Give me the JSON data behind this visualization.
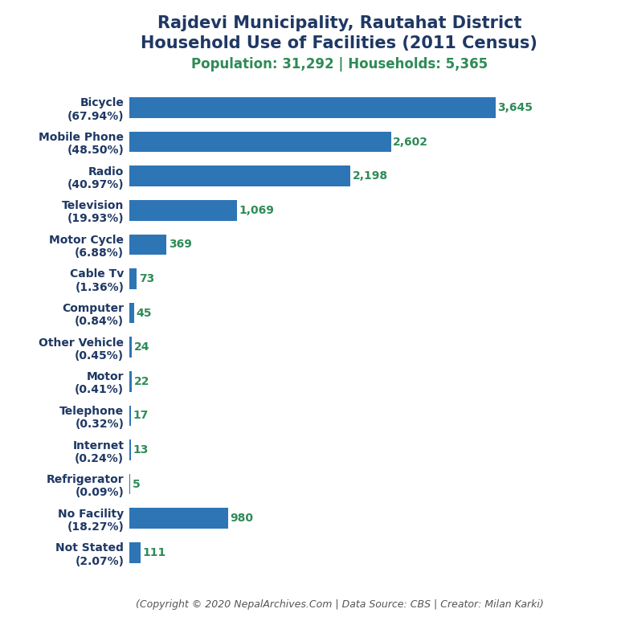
{
  "title_line1": "Rajdevi Municipality, Rautahat District",
  "title_line2": "Household Use of Facilities (2011 Census)",
  "subtitle": "Population: 31,292 | Households: 5,365",
  "footer": "(Copyright © 2020 NepalArchives.Com | Data Source: CBS | Creator: Milan Karki)",
  "categories": [
    "Bicycle\n(67.94%)",
    "Mobile Phone\n(48.50%)",
    "Radio\n(40.97%)",
    "Television\n(19.93%)",
    "Motor Cycle\n(6.88%)",
    "Cable Tv\n(1.36%)",
    "Computer\n(0.84%)",
    "Other Vehicle\n(0.45%)",
    "Motor\n(0.41%)",
    "Telephone\n(0.32%)",
    "Internet\n(0.24%)",
    "Refrigerator\n(0.09%)",
    "No Facility\n(18.27%)",
    "Not Stated\n(2.07%)"
  ],
  "values": [
    3645,
    2602,
    2198,
    1069,
    369,
    73,
    45,
    24,
    22,
    17,
    13,
    5,
    980,
    111
  ],
  "labels": [
    "3,645",
    "2,602",
    "2,198",
    "1,069",
    "369",
    "73",
    "45",
    "24",
    "22",
    "17",
    "13",
    "5",
    "980",
    "111"
  ],
  "bar_color": "#2E75B6",
  "label_color": "#2E8B57",
  "title_color": "#1F3864",
  "subtitle_color": "#2E8B57",
  "footer_color": "#555555",
  "bg_color": "#FFFFFF",
  "title_fontsize": 15,
  "subtitle_fontsize": 12,
  "label_fontsize": 10,
  "ylabel_fontsize": 10,
  "footer_fontsize": 9
}
